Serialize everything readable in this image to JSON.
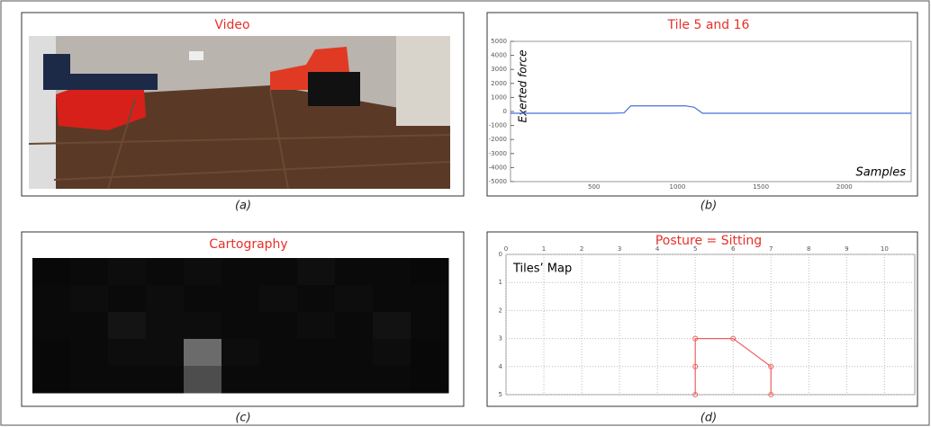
{
  "panels": {
    "a": {
      "title": "Video",
      "caption": "(a)"
    },
    "b": {
      "caption": "(b)"
    },
    "c": {
      "caption": "(c)"
    },
    "d": {
      "caption": "(d)"
    }
  },
  "chart_data": [
    {
      "type": "line",
      "title": "Tile 5 and 16",
      "x_label": "Samples",
      "y_label": "Exerted force",
      "x": [
        0,
        600,
        680,
        720,
        1050,
        1100,
        1150,
        2400
      ],
      "series": [
        {
          "name": null,
          "color": "#4a6fd8",
          "values": [
            -130,
            -130,
            -100,
            400,
            400,
            300,
            -130,
            -130
          ]
        }
      ],
      "xlim": [
        0,
        2400
      ],
      "xticks": [
        500,
        1000,
        1500,
        2000
      ],
      "ylim": [
        -5000,
        5000
      ],
      "yticks": [
        -5000,
        -4000,
        -3000,
        -2000,
        -1000,
        0,
        1000,
        2000,
        3000,
        4000,
        5000
      ]
    },
    {
      "type": "heatmap",
      "title": "Cartography",
      "values": [
        [
          0.03,
          0.04,
          0.05,
          0.04,
          0.05,
          0.04,
          0.04,
          0.06,
          0.04,
          0.04,
          0.03
        ],
        [
          0.04,
          0.05,
          0.04,
          0.05,
          0.04,
          0.04,
          0.05,
          0.04,
          0.05,
          0.04,
          0.04
        ],
        [
          0.04,
          0.04,
          0.08,
          0.05,
          0.05,
          0.04,
          0.04,
          0.05,
          0.04,
          0.07,
          0.04
        ],
        [
          0.03,
          0.04,
          0.05,
          0.05,
          0.42,
          0.05,
          0.04,
          0.04,
          0.04,
          0.05,
          0.03
        ],
        [
          0.03,
          0.04,
          0.04,
          0.04,
          0.3,
          0.04,
          0.04,
          0.04,
          0.04,
          0.04,
          0.03
        ]
      ]
    },
    {
      "type": "line",
      "title": "Posture = Sitting",
      "annotation": "Tiles’ Map",
      "x": [
        5,
        5,
        5,
        6,
        7,
        7
      ],
      "series": [
        {
          "name": null,
          "color": "#f06060",
          "values": [
            5,
            4,
            3,
            3,
            4,
            5
          ]
        }
      ],
      "xlim": [
        0,
        10.8
      ],
      "xticks": [
        0,
        1,
        2,
        3,
        4,
        5,
        6,
        7,
        8,
        9,
        10
      ],
      "ylim": [
        0,
        5
      ],
      "yticks": [
        0,
        1,
        2,
        3,
        4,
        5
      ],
      "y_inverted": true,
      "x_axis_position": "top",
      "grid": true
    }
  ]
}
